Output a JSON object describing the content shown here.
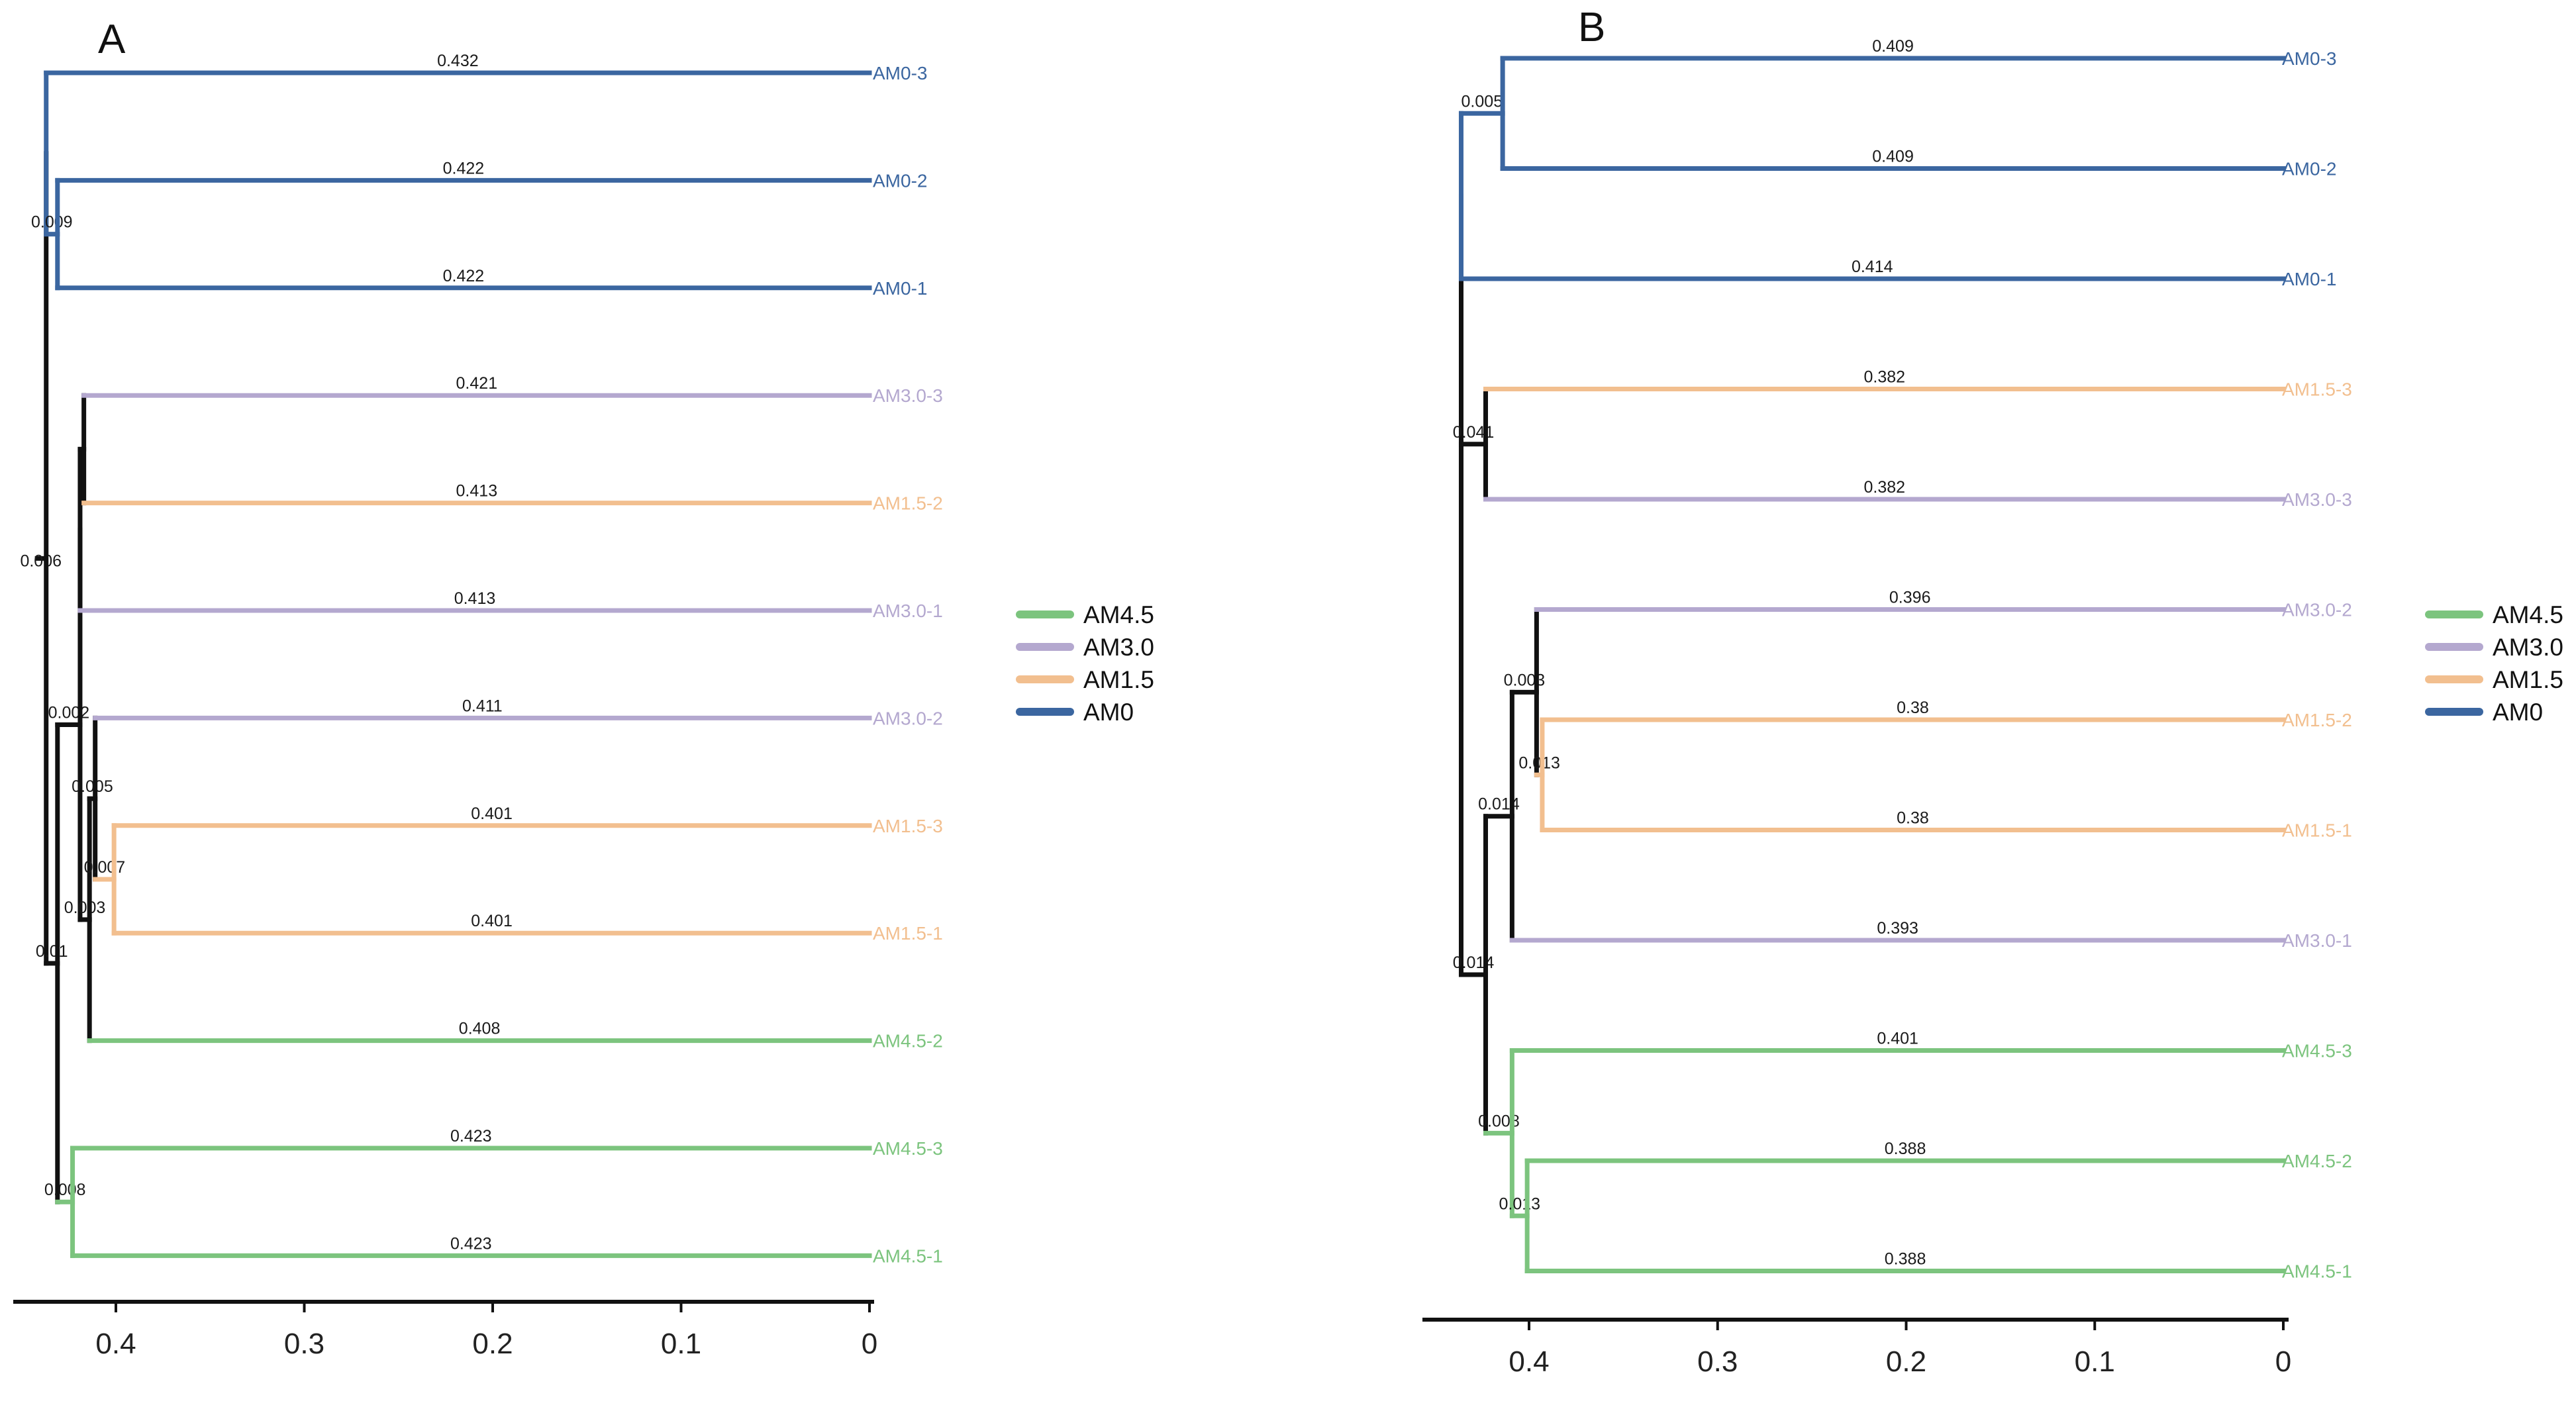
{
  "colors": {
    "AM0": "#3b66a0",
    "AM1.5": "#f2bf8f",
    "AM3.0": "#b4a8cf",
    "AM4.5": "#7cc47e",
    "mixed": "#111111"
  },
  "legend": {
    "entries": [
      {
        "label": "AM4.5",
        "group": "AM4.5"
      },
      {
        "label": "AM3.0",
        "group": "AM3.0"
      },
      {
        "label": "AM1.5",
        "group": "AM1.5"
      },
      {
        "label": "AM0",
        "group": "AM0"
      }
    ]
  },
  "chart_data": [
    {
      "type": "dendrogram",
      "title": "A",
      "xlabel": "",
      "ylabel": "",
      "xlim": [
        0.45,
        0
      ],
      "ticks": [
        "0.4",
        "0.3",
        "0.2",
        "0.1",
        "0"
      ],
      "leaf_order": [
        "AM0-3",
        "AM0-2",
        "AM0-1",
        "AM3.0-3",
        "AM1.5-2",
        "AM3.0-1",
        "AM3.0-2",
        "AM1.5-3",
        "AM1.5-1",
        "AM4.5-2",
        "AM4.5-3",
        "AM4.5-1"
      ],
      "root": {
        "group": "mixed",
        "h": 0.437,
        "len": 0.006,
        "len_label": "0.006",
        "children": [
          {
            "group": "AM0",
            "h": 0.437,
            "len": 0.005,
            "len_label": "0.005",
            "children": [
              {
                "leaf": "AM0-3",
                "group": "AM0",
                "len": 0.432,
                "len_label": "0.432"
              },
              {
                "group": "AM0",
                "h": 0.431,
                "len": 0.009,
                "len_label": "0.009",
                "children": [
                  {
                    "leaf": "AM0-2",
                    "group": "AM0",
                    "len": 0.422,
                    "len_label": "0.422"
                  },
                  {
                    "leaf": "AM0-1",
                    "group": "AM0",
                    "len": 0.422,
                    "len_label": "0.422"
                  }
                ]
              }
            ]
          },
          {
            "group": "mixed",
            "h": 0.431,
            "len": 0.01,
            "len_label": "0.01",
            "children": [
              {
                "group": "mixed",
                "h": 0.419,
                "len": 0.002,
                "len_label": "0.002",
                "children": [
                  {
                    "group": "mixed",
                    "h": 0.419,
                    "len": 0.005,
                    "len_label": "0.005",
                    "children": [
                      {
                        "group": "mixed",
                        "h": 0.417,
                        "len": 0.002,
                        "len_label": "",
                        "children": [
                          {
                            "leaf": "AM3.0-3",
                            "group": "AM3.0",
                            "len": 0.421,
                            "len_label": "0.421"
                          },
                          {
                            "leaf": "AM1.5-2",
                            "group": "AM1.5",
                            "len": 0.413,
                            "len_label": "0.413"
                          }
                        ]
                      },
                      {
                        "leaf": "AM3.0-1",
                        "group": "AM3.0",
                        "len": 0.413,
                        "len_label": "0.413"
                      }
                    ]
                  },
                  {
                    "group": "mixed",
                    "h": 0.414,
                    "len": 0.003,
                    "len_label": "0.003",
                    "children": [
                      {
                        "group": "mixed",
                        "h": 0.411,
                        "len": 0.005,
                        "len_label": "0.005",
                        "children": [
                          {
                            "leaf": "AM3.0-2",
                            "group": "AM3.0",
                            "len": 0.411,
                            "len_label": "0.411"
                          },
                          {
                            "group": "AM1.5",
                            "h": 0.401,
                            "len": 0.007,
                            "len_label": "0.007",
                            "children": [
                              {
                                "leaf": "AM1.5-3",
                                "group": "AM1.5",
                                "len": 0.401,
                                "len_label": "0.401"
                              },
                              {
                                "leaf": "AM1.5-1",
                                "group": "AM1.5",
                                "len": 0.401,
                                "len_label": "0.401"
                              }
                            ]
                          }
                        ]
                      },
                      {
                        "leaf": "AM4.5-2",
                        "group": "AM4.5",
                        "len": 0.408,
                        "len_label": "0.408"
                      }
                    ]
                  }
                ]
              },
              {
                "group": "AM4.5",
                "h": 0.423,
                "len": 0.008,
                "len_label": "0.008",
                "children": [
                  {
                    "leaf": "AM4.5-3",
                    "group": "AM4.5",
                    "len": 0.423,
                    "len_label": "0.423"
                  },
                  {
                    "leaf": "AM4.5-1",
                    "group": "AM4.5",
                    "len": 0.423,
                    "len_label": "0.423"
                  }
                ]
              }
            ]
          }
        ]
      }
    },
    {
      "type": "dendrogram",
      "title": "B",
      "xlabel": "",
      "ylabel": "",
      "xlim": [
        0.45,
        0
      ],
      "ticks": [
        "0.4",
        "0.3",
        "0.2",
        "0.1",
        "0"
      ],
      "leaf_order": [
        "AM0-3",
        "AM0-2",
        "AM0-1",
        "AM1.5-3",
        "AM3.0-3",
        "AM3.0-2",
        "AM1.5-2",
        "AM1.5-1",
        "AM3.0-1",
        "AM4.5-3",
        "AM4.5-2",
        "AM4.5-1"
      ],
      "root": {
        "group": "mixed",
        "h": 0.436,
        "len": 0.0,
        "len_label": "",
        "children": [
          {
            "group": "AM0",
            "h": 0.436,
            "len": 0.022,
            "len_label": "0.022",
            "children": [
              {
                "group": "AM0",
                "h": 0.414,
                "len": 0.005,
                "len_label": "0.005",
                "children": [
                  {
                    "leaf": "AM0-3",
                    "group": "AM0",
                    "len": 0.409,
                    "len_label": "0.409"
                  },
                  {
                    "leaf": "AM0-2",
                    "group": "AM0",
                    "len": 0.409,
                    "len_label": "0.409"
                  }
                ]
              },
              {
                "leaf": "AM0-1",
                "group": "AM0",
                "len": 0.414,
                "len_label": "0.414"
              }
            ]
          },
          {
            "group": "mixed",
            "h": 0.436,
            "len": 0.013,
            "len_label": "0.013",
            "children": [
              {
                "group": "mixed",
                "h": 0.423,
                "len": 0.041,
                "len_label": "0.041",
                "children": [
                  {
                    "leaf": "AM1.5-3",
                    "group": "AM1.5",
                    "len": 0.382,
                    "len_label": "0.382"
                  },
                  {
                    "leaf": "AM3.0-3",
                    "group": "AM3.0",
                    "len": 0.382,
                    "len_label": "0.382"
                  }
                ]
              },
              {
                "group": "mixed",
                "h": 0.423,
                "len": 0.014,
                "len_label": "0.014",
                "children": [
                  {
                    "group": "mixed",
                    "h": 0.409,
                    "len": 0.014,
                    "len_label": "0.014",
                    "children": [
                      {
                        "group": "mixed",
                        "h": 0.396,
                        "len": 0.003,
                        "len_label": "0.003",
                        "children": [
                          {
                            "leaf": "AM3.0-2",
                            "group": "AM3.0",
                            "len": 0.396,
                            "len_label": "0.396"
                          },
                          {
                            "group": "AM1.5",
                            "h": 0.393,
                            "len": 0.013,
                            "len_label": "0.013",
                            "children": [
                              {
                                "leaf": "AM1.5-2",
                                "group": "AM1.5",
                                "len": 0.38,
                                "len_label": "0.38"
                              },
                              {
                                "leaf": "AM1.5-1",
                                "group": "AM1.5",
                                "len": 0.38,
                                "len_label": "0.38"
                              }
                            ]
                          }
                        ]
                      },
                      {
                        "leaf": "AM3.0-1",
                        "group": "AM3.0",
                        "len": 0.393,
                        "len_label": "0.393"
                      }
                    ]
                  },
                  {
                    "group": "AM4.5",
                    "h": 0.409,
                    "len": 0.008,
                    "len_label": "0.008",
                    "children": [
                      {
                        "leaf": "AM4.5-3",
                        "group": "AM4.5",
                        "len": 0.401,
                        "len_label": "0.401"
                      },
                      {
                        "group": "AM4.5",
                        "h": 0.401,
                        "len": 0.013,
                        "len_label": "0.013",
                        "children": [
                          {
                            "leaf": "AM4.5-2",
                            "group": "AM4.5",
                            "len": 0.388,
                            "len_label": "0.388"
                          },
                          {
                            "leaf": "AM4.5-1",
                            "group": "AM4.5",
                            "len": 0.388,
                            "len_label": "0.388"
                          }
                        ]
                      }
                    ]
                  }
                ]
              }
            ]
          }
        ]
      }
    }
  ]
}
